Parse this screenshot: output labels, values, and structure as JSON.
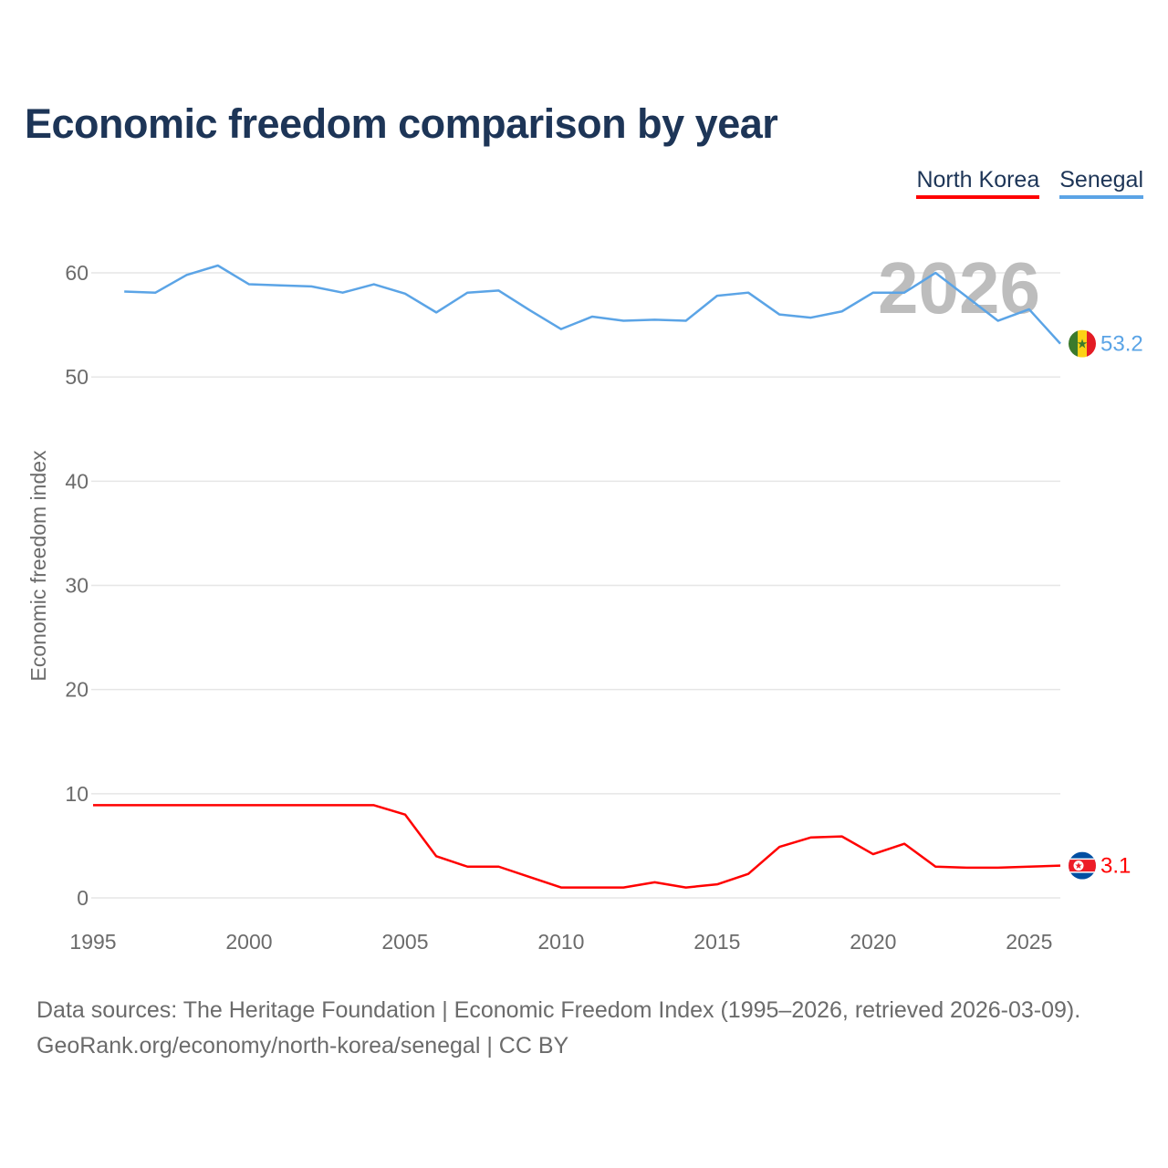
{
  "title": "Economic freedom comparison by year",
  "legend": [
    {
      "label": "North Korea",
      "color": "#ff0000"
    },
    {
      "label": "Senegal",
      "color": "#5ba4e6"
    }
  ],
  "source_line1": "Data sources: The Heritage Foundation | Economic Freedom Index (1995–2026, retrieved 2026-03-09).",
  "source_line2": "GeoRank.org/economy/north-korea/senegal | CC BY",
  "chart_data": {
    "type": "line",
    "title": "Economic freedom comparison by year",
    "xlabel": "",
    "ylabel": "Economic freedom index",
    "xlim": [
      1995,
      2026
    ],
    "ylim": [
      0,
      60
    ],
    "xticks": [
      1995,
      2000,
      2005,
      2010,
      2015,
      2020,
      2025
    ],
    "yticks": [
      0,
      10,
      20,
      30,
      40,
      50,
      60
    ],
    "grid": true,
    "watermark_year": "2026",
    "series": [
      {
        "name": "Senegal",
        "color": "#5ba4e6",
        "end_label": "53.2",
        "x": [
          1996,
          1997,
          1998,
          1999,
          2000,
          2001,
          2002,
          2003,
          2004,
          2005,
          2006,
          2007,
          2008,
          2009,
          2010,
          2011,
          2012,
          2013,
          2014,
          2015,
          2016,
          2017,
          2018,
          2019,
          2020,
          2021,
          2022,
          2023,
          2024,
          2025,
          2026
        ],
        "y": [
          58.2,
          58.1,
          59.8,
          60.7,
          58.9,
          58.8,
          58.7,
          58.1,
          58.9,
          58.0,
          56.2,
          58.1,
          58.3,
          56.4,
          54.6,
          55.8,
          55.4,
          55.5,
          55.4,
          57.8,
          58.1,
          56.0,
          55.7,
          56.3,
          58.1,
          58.1,
          60.0,
          57.7,
          55.4,
          56.5,
          53.2
        ]
      },
      {
        "name": "North Korea",
        "color": "#ff0000",
        "end_label": "3.1",
        "x": [
          1995,
          1996,
          1997,
          1998,
          1999,
          2000,
          2001,
          2002,
          2003,
          2004,
          2005,
          2006,
          2007,
          2008,
          2009,
          2010,
          2011,
          2012,
          2013,
          2014,
          2015,
          2016,
          2017,
          2018,
          2019,
          2020,
          2021,
          2022,
          2023,
          2024,
          2025,
          2026
        ],
        "y": [
          8.9,
          8.9,
          8.9,
          8.9,
          8.9,
          8.9,
          8.9,
          8.9,
          8.9,
          8.9,
          8.0,
          4.0,
          3.0,
          3.0,
          2.0,
          1.0,
          1.0,
          1.0,
          1.5,
          1.0,
          1.3,
          2.3,
          4.9,
          5.8,
          5.9,
          4.2,
          5.2,
          3.0,
          2.9,
          2.9,
          3.0,
          3.1
        ]
      }
    ]
  }
}
